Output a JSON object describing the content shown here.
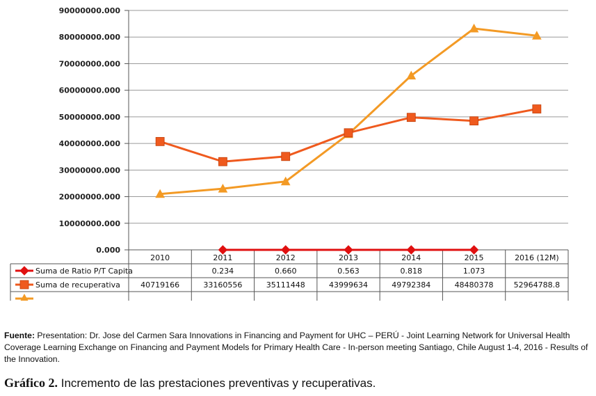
{
  "chart_data": {
    "type": "line",
    "categories": [
      "2010",
      "2011",
      "2012",
      "2013",
      "2014",
      "2015",
      "2016 (12M)"
    ],
    "ylim": [
      0,
      90000000
    ],
    "y_ticks": [
      "0.000",
      "10000000.000",
      "20000000.000",
      "30000000.000",
      "40000000.000",
      "50000000.000",
      "60000000.000",
      "70000000.000",
      "80000000.000",
      "90000000.000"
    ],
    "grid": true,
    "legend": "data-table-below",
    "series": [
      {
        "name": "Suma de Ratio P/T  Capita",
        "color": "#e01010",
        "marker": "diamond",
        "values": [
          null,
          0.234,
          0.66,
          0.563,
          0.818,
          1.073,
          null
        ],
        "labels": [
          "",
          "0.234",
          "0.660",
          "0.563",
          "0.818",
          "1.073",
          ""
        ]
      },
      {
        "name": "Suma de recuperativa",
        "color": "#ef5a1e",
        "marker": "square",
        "values": [
          40719166,
          33160556,
          35111448,
          43999634,
          49792384,
          48480378,
          52964788.8
        ],
        "labels": [
          "40719166",
          "33160556",
          "35111448",
          "43999634",
          "49792384",
          "48480378",
          "52964788.8"
        ]
      },
      {
        "name": "",
        "color": "#f39a25",
        "marker": "triangle",
        "values": [
          21000000,
          23000000,
          25700000,
          43500000,
          65500000,
          83200000,
          80500000
        ],
        "labels": []
      }
    ]
  },
  "footer": {
    "source_label": "Fuente:",
    "source_text": "Presentation: Dr. Jose del Carmen Sara Innovations in Financing and Payment for UHC – PERÚ - Joint Learning Network for Universal Health Coverage Learning Exchange on Financing and Payment Models for Primary Health Care - In-person meeting Santiago, Chile August 1-4, 2016 - Results of the Innovation.",
    "caption_number": "Gráfico 2.",
    "caption_text": "Incremento de las prestaciones preventivas y recuperativas."
  }
}
